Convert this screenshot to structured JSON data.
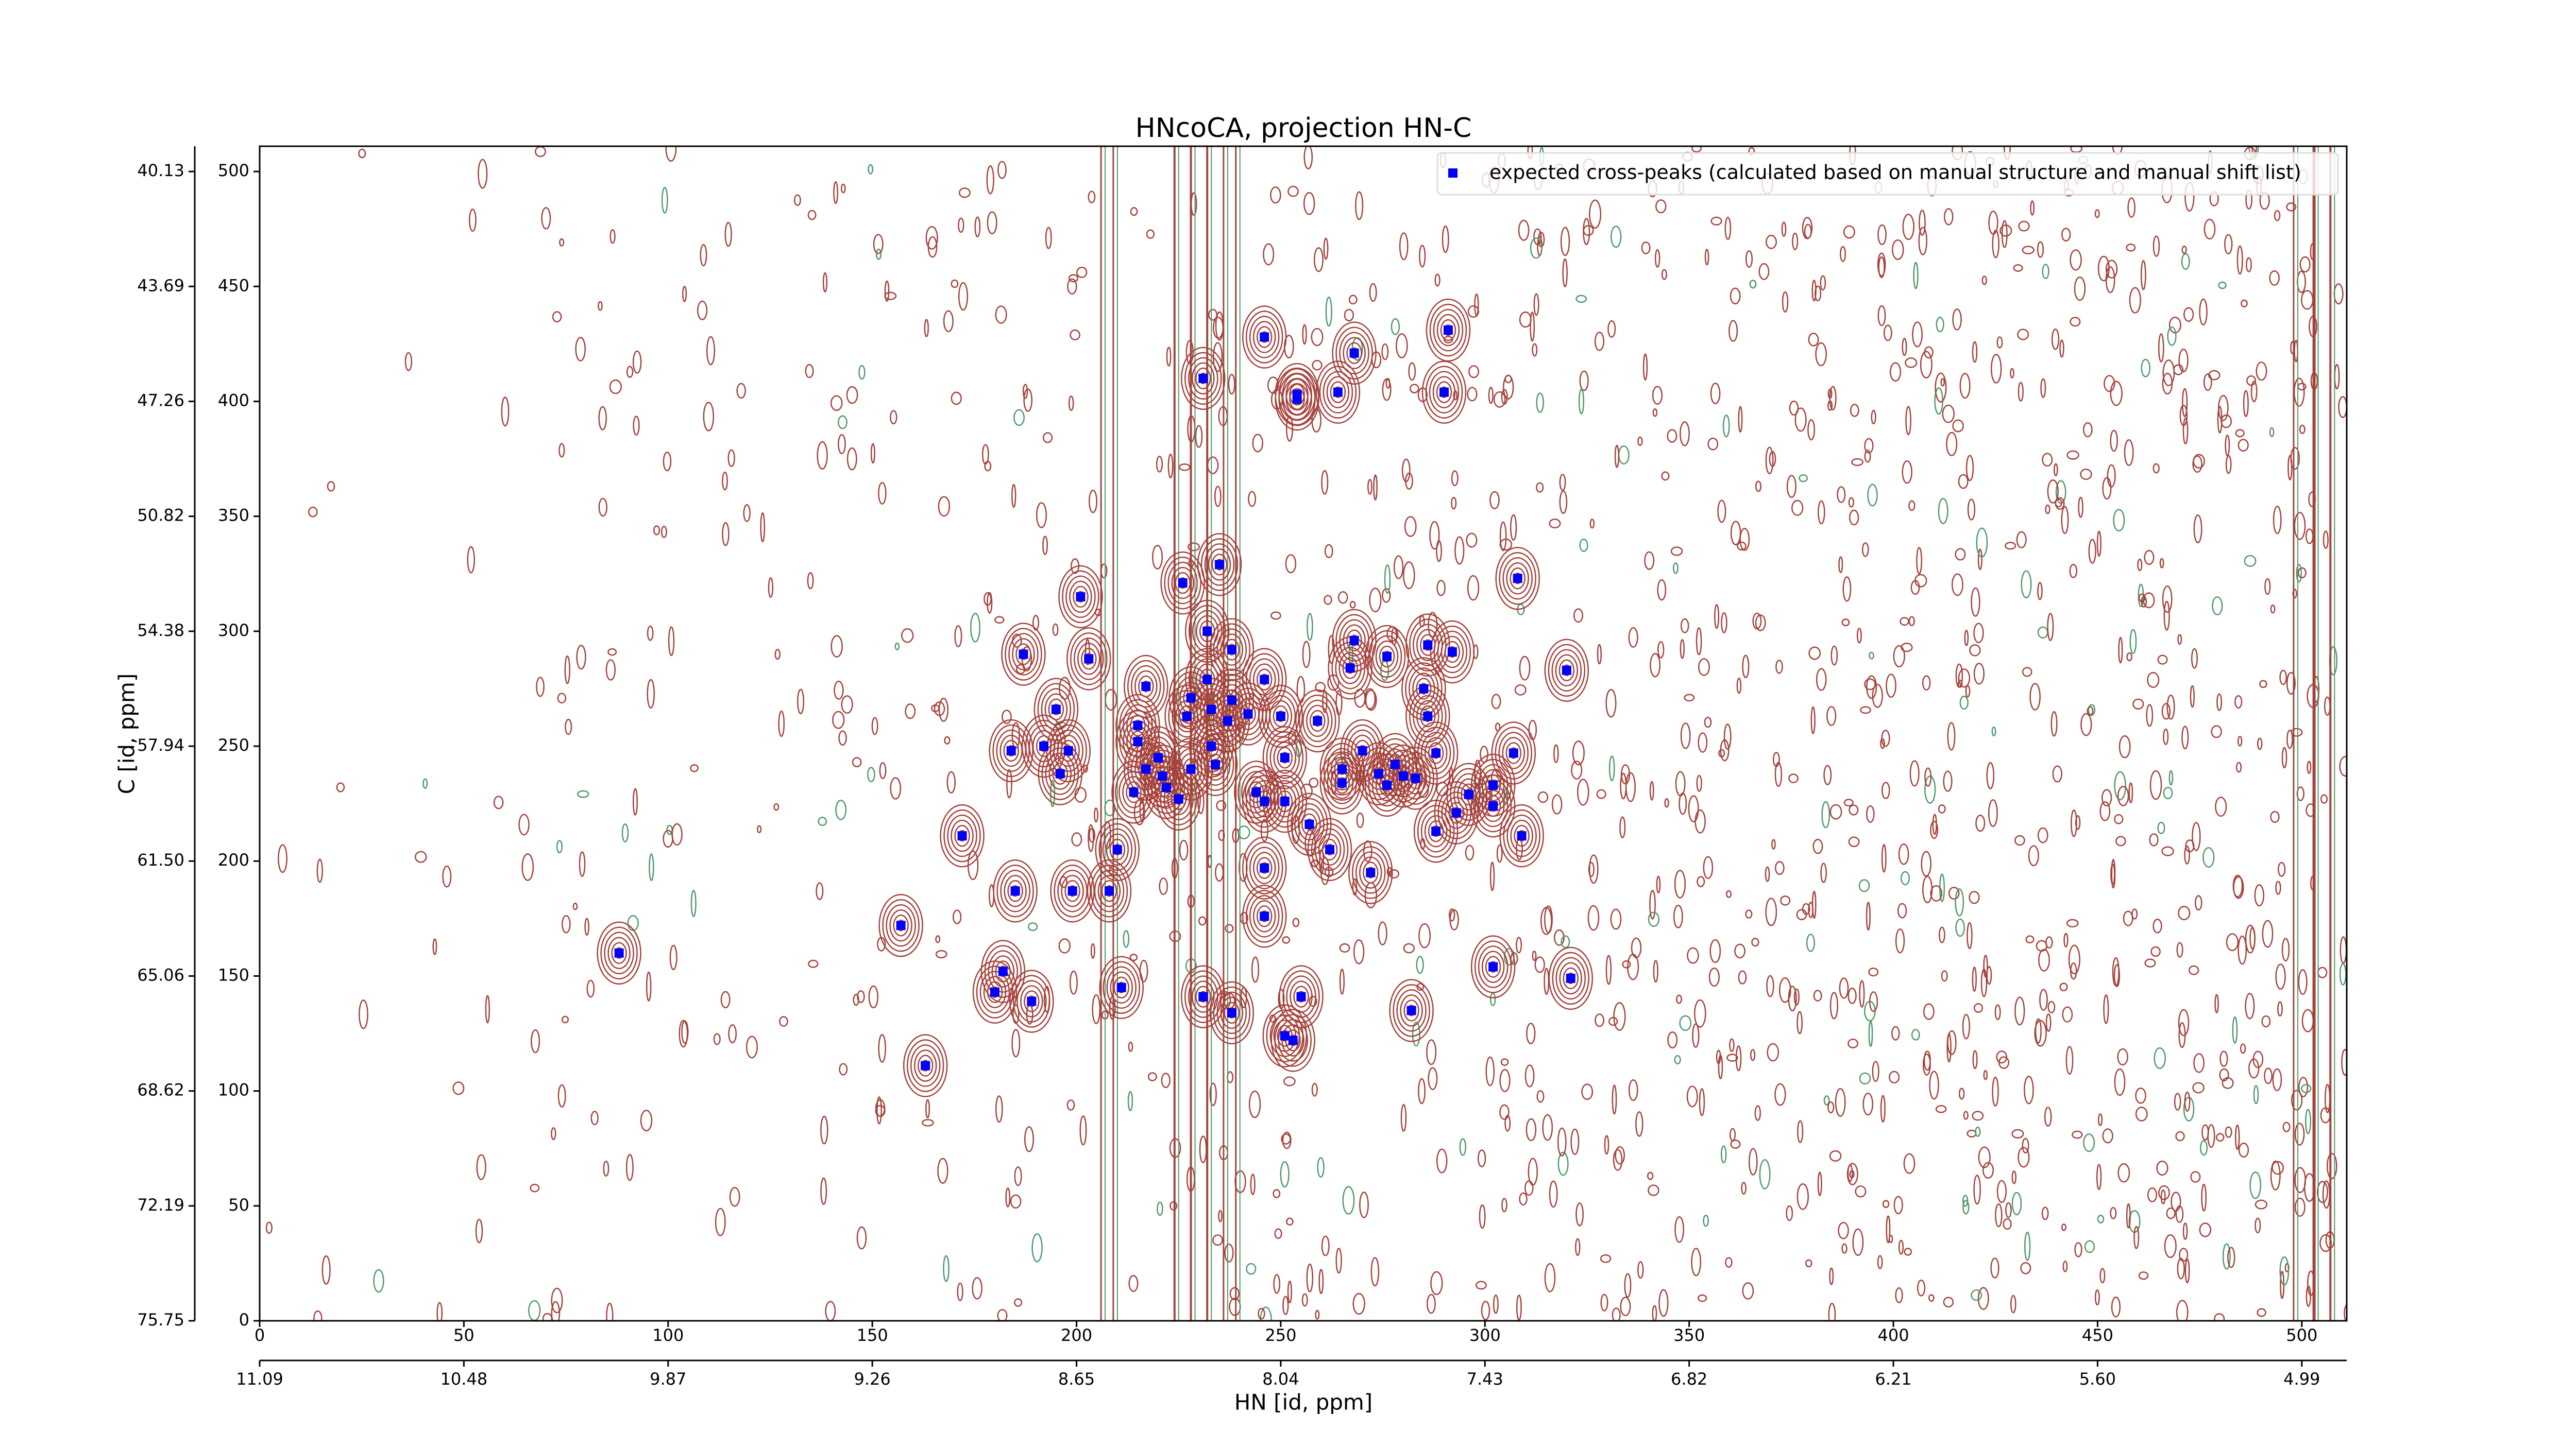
{
  "chart_data": {
    "type": "scatter",
    "title": "HNcoCA, projection HN-C",
    "xlabel": "HN [id, ppm]",
    "ylabel": "C [id, ppm]",
    "xlim": [
      0,
      511
    ],
    "ylim": [
      0,
      511
    ],
    "xticks": [
      0,
      50,
      100,
      150,
      200,
      250,
      300,
      350,
      400,
      450,
      500
    ],
    "yticks": [
      0,
      50,
      100,
      150,
      200,
      250,
      300,
      350,
      400,
      450,
      500
    ],
    "x2ticks": [
      {
        "value": 0,
        "label": "11.09"
      },
      {
        "value": 50,
        "label": "10.48"
      },
      {
        "value": 100,
        "label": "9.87"
      },
      {
        "value": 150,
        "label": "9.26"
      },
      {
        "value": 200,
        "label": "8.65"
      },
      {
        "value": 250,
        "label": "8.04"
      },
      {
        "value": 300,
        "label": "7.43"
      },
      {
        "value": 350,
        "label": "6.82"
      },
      {
        "value": 400,
        "label": "6.21"
      },
      {
        "value": 450,
        "label": "5.60"
      },
      {
        "value": 500,
        "label": "4.99"
      }
    ],
    "y2ticks": [
      {
        "value": 0,
        "label": "75.75"
      },
      {
        "value": 50,
        "label": "72.19"
      },
      {
        "value": 100,
        "label": "68.62"
      },
      {
        "value": 150,
        "label": "65.06"
      },
      {
        "value": 200,
        "label": "61.50"
      },
      {
        "value": 250,
        "label": "57.94"
      },
      {
        "value": 300,
        "label": "54.38"
      },
      {
        "value": 350,
        "label": "50.82"
      },
      {
        "value": 400,
        "label": "47.26"
      },
      {
        "value": 450,
        "label": "43.69"
      },
      {
        "value": 500,
        "label": "40.13"
      }
    ],
    "legend": "upper right",
    "series": [
      {
        "name": "expected cross-peaks (calculated based on manual structure and manual shift list)",
        "color": "#0000ff",
        "x": [
          88,
          157,
          163,
          172,
          185,
          199,
          208,
          210,
          182,
          180,
          189,
          211,
          231,
          238,
          251,
          253,
          255,
          282,
          302,
          321,
          246,
          246,
          262,
          272,
          257,
          246,
          251,
          225,
          222,
          214,
          221,
          217,
          215,
          215,
          217,
          228,
          227,
          233,
          234,
          228,
          233,
          237,
          238,
          242,
          246,
          250,
          259,
          267,
          268,
          276,
          286,
          292,
          285,
          286,
          288,
          265,
          265,
          270,
          274,
          276,
          278,
          280,
          283,
          288,
          293,
          296,
          302,
          302,
          307,
          309,
          320,
          308,
          235,
          226,
          201,
          187,
          203,
          195,
          192,
          184,
          198,
          196,
          232,
          232,
          246,
          268,
          264,
          254,
          254,
          231,
          291,
          290,
          251,
          244,
          220,
          238
        ],
        "values": [
          160,
          172,
          111,
          211,
          187,
          187,
          187,
          205,
          152,
          143,
          139,
          145,
          141,
          134,
          124,
          122,
          141,
          135,
          154,
          149,
          197,
          176,
          205,
          195,
          216,
          226,
          226,
          227,
          232,
          230,
          237,
          240,
          252,
          259,
          276,
          271,
          263,
          266,
          242,
          240,
          250,
          261,
          270,
          264,
          279,
          263,
          261,
          284,
          296,
          289,
          294,
          291,
          275,
          263,
          247,
          240,
          234,
          248,
          238,
          233,
          242,
          237,
          236,
          213,
          221,
          229,
          233,
          224,
          247,
          211,
          283,
          323,
          329,
          321,
          315,
          290,
          288,
          266,
          250,
          248,
          248,
          238,
          300,
          279,
          428,
          421,
          404,
          401,
          403,
          410,
          431,
          404,
          245,
          230,
          245,
          292
        ]
      }
    ]
  }
}
